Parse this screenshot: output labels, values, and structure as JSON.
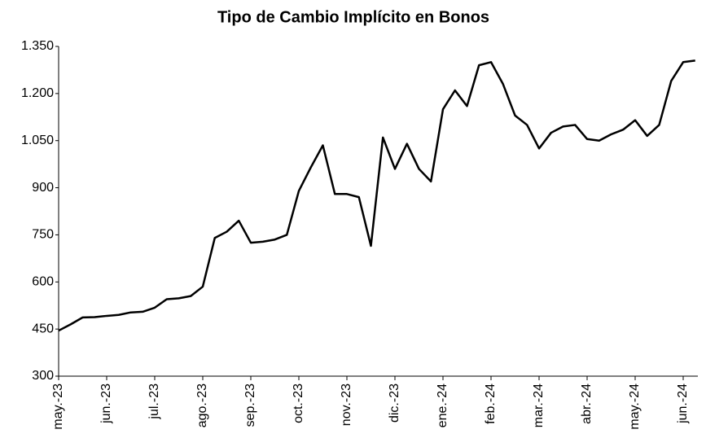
{
  "chart_data": {
    "type": "line",
    "title": "Tipo de Cambio Implícito en Bonos",
    "categories": [
      "may.-23",
      null,
      null,
      null,
      "jun.-23",
      null,
      null,
      null,
      "jul.-23",
      null,
      null,
      null,
      "ago.-23",
      null,
      null,
      null,
      "sep.-23",
      null,
      null,
      null,
      "oct.-23",
      null,
      null,
      null,
      "nov.-23",
      null,
      null,
      null,
      "dic.-23",
      null,
      null,
      null,
      "ene.-24",
      null,
      null,
      null,
      "feb.-24",
      null,
      null,
      null,
      "mar.-24",
      null,
      null,
      null,
      "abr.-24",
      null,
      null,
      null,
      "may.-24",
      null,
      null,
      null,
      "jun.-24",
      null
    ],
    "series": [
      {
        "name": "Tipo de Cambio Implícito",
        "color": "#000000",
        "values": [
          445,
          465,
          487,
          488,
          492,
          495,
          503,
          505,
          518,
          545,
          548,
          555,
          585,
          740,
          760,
          795,
          725,
          728,
          735,
          750,
          890,
          965,
          1035,
          880,
          880,
          870,
          715,
          1060,
          960,
          1040,
          960,
          920,
          1150,
          1210,
          1160,
          1290,
          1300,
          1230,
          1130,
          1100,
          1025,
          1075,
          1095,
          1100,
          1055,
          1050,
          1070,
          1085,
          1115,
          1065,
          1100,
          1240,
          1300,
          1305
        ]
      }
    ],
    "ylim": [
      300,
      1350
    ],
    "yticks": [
      300,
      450,
      600,
      750,
      900,
      {
        "value": 1050,
        "label": "1.050"
      },
      {
        "value": 1200,
        "label": "1.200"
      },
      {
        "value": 1350,
        "label": "1.350"
      }
    ],
    "grid": false
  }
}
